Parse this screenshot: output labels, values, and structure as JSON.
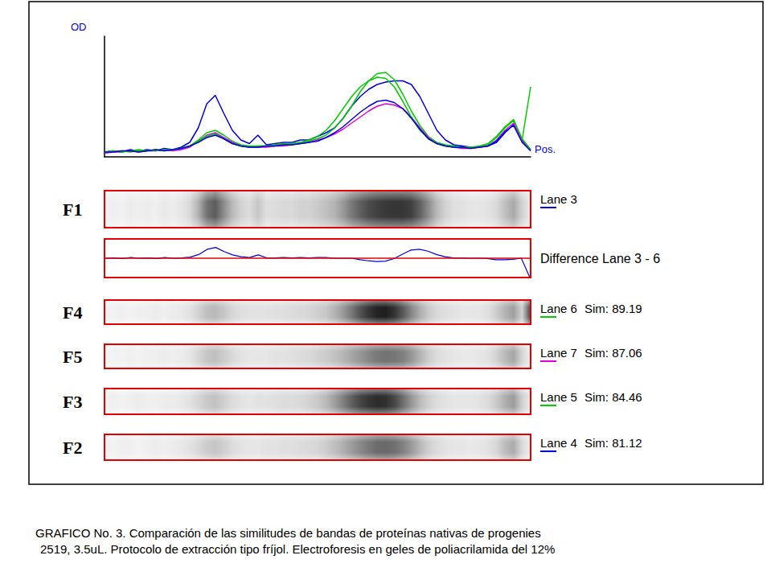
{
  "chart_data": {
    "type": "line",
    "y_label": "OD",
    "x_label": "Pos.",
    "xlim": [
      0,
      100
    ],
    "ylim": [
      0,
      100
    ],
    "tick_labels": false,
    "grid": false,
    "x": [
      0,
      2,
      4,
      6,
      8,
      10,
      12,
      14,
      16,
      18,
      20,
      22,
      24,
      26,
      28,
      30,
      32,
      34,
      36,
      38,
      40,
      42,
      44,
      46,
      48,
      50,
      52,
      54,
      56,
      58,
      60,
      62,
      64,
      66,
      68,
      70,
      72,
      74,
      76,
      78,
      80,
      82,
      84,
      86,
      88,
      90,
      92,
      94,
      96,
      98,
      100
    ],
    "series": [
      {
        "name": "Lane 3",
        "tag": "F1",
        "color": "#0000e0",
        "values": [
          4,
          5,
          4,
          6,
          5,
          6,
          5,
          7,
          6,
          8,
          12,
          24,
          44,
          51,
          36,
          22,
          14,
          11,
          18,
          10,
          11,
          12,
          12,
          14,
          14,
          17,
          20,
          24,
          32,
          42,
          50,
          56,
          60,
          62,
          63,
          63,
          60,
          50,
          36,
          22,
          14,
          10,
          9,
          8,
          8,
          9,
          12,
          20,
          27,
          14,
          6
        ]
      },
      {
        "name": "Lane 6",
        "tag": "F4",
        "sim": 89.19,
        "color": "#00cc00",
        "values": [
          4,
          4,
          5,
          4,
          5,
          5,
          6,
          5,
          6,
          7,
          9,
          14,
          20,
          22,
          18,
          13,
          10,
          9,
          9,
          9,
          10,
          10,
          11,
          12,
          13,
          15,
          18,
          24,
          32,
          42,
          54,
          63,
          69,
          70,
          64,
          52,
          38,
          26,
          17,
          12,
          10,
          9,
          8,
          8,
          8,
          10,
          16,
          24,
          30,
          14,
          58
        ]
      },
      {
        "name": "Lane 7",
        "tag": "F5",
        "sim": 87.06,
        "color": "#e000e0",
        "values": [
          3,
          4,
          4,
          5,
          4,
          5,
          5,
          6,
          5,
          6,
          8,
          13,
          18,
          20,
          16,
          12,
          9,
          8,
          8,
          8,
          9,
          9,
          10,
          11,
          12,
          14,
          16,
          19,
          23,
          28,
          33,
          38,
          42,
          44,
          43,
          40,
          33,
          24,
          16,
          11,
          9,
          8,
          7,
          7,
          8,
          9,
          14,
          22,
          28,
          13,
          5
        ]
      },
      {
        "name": "Lane 5",
        "tag": "F3",
        "sim": 84.46,
        "color": "#00cc00",
        "values": [
          4,
          5,
          4,
          5,
          6,
          5,
          5,
          6,
          6,
          7,
          9,
          13,
          17,
          19,
          15,
          11,
          9,
          8,
          9,
          9,
          10,
          11,
          11,
          12,
          14,
          17,
          22,
          30,
          40,
          50,
          58,
          63,
          66,
          65,
          58,
          46,
          33,
          22,
          15,
          11,
          9,
          8,
          8,
          8,
          9,
          11,
          17,
          25,
          31,
          15,
          6
        ]
      },
      {
        "name": "Lane 4",
        "tag": "F2",
        "sim": 81.12,
        "color": "#0000e0",
        "values": [
          4,
          4,
          5,
          5,
          4,
          5,
          6,
          5,
          6,
          7,
          9,
          12,
          16,
          18,
          15,
          11,
          9,
          8,
          8,
          9,
          9,
          10,
          10,
          11,
          12,
          13,
          16,
          20,
          25,
          31,
          37,
          42,
          46,
          47,
          45,
          40,
          32,
          23,
          15,
          11,
          9,
          8,
          8,
          7,
          8,
          9,
          13,
          21,
          26,
          12,
          5
        ]
      }
    ],
    "similarity_label": "Sim:",
    "difference_label": "Difference Lane 3 - 6"
  },
  "caption": [
    "GRAFICO No. 3. Comparación de las similitudes de bandas de proteínas nativas de progenies",
    "2519, 3.5uL. Protocolo de extracción tipo fríjol. Electroforesis en geles de poliacrilamida del 12%"
  ]
}
